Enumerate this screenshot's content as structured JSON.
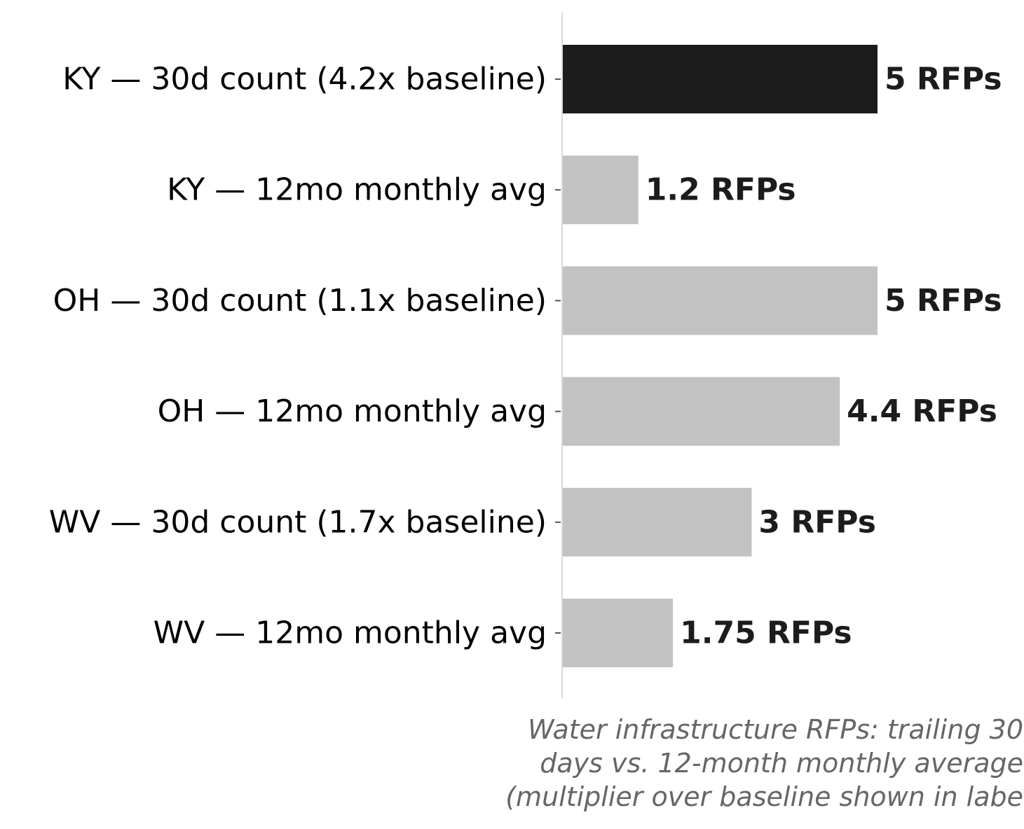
{
  "chart_data": {
    "type": "bar",
    "orientation": "horizontal",
    "categories": [
      "KY — 30d count (4.2x baseline)",
      "KY — 12mo monthly avg",
      "OH — 30d count (1.1x baseline)",
      "OH — 12mo monthly avg",
      "WV — 30d count (1.7x baseline)",
      "WV — 12mo monthly avg"
    ],
    "values": [
      5,
      1.2,
      5,
      4.4,
      3,
      1.75
    ],
    "value_labels": [
      "5 RFPs",
      "1.2 RFPs",
      "5 RFPs",
      "4.4 RFPs",
      "3 RFPs",
      "1.75 RFPs"
    ],
    "bar_colors": [
      "#1c1c1c",
      "#c2c2c2",
      "#c2c2c2",
      "#c2c2c2",
      "#c2c2c2",
      "#c2c2c2"
    ],
    "value_label_color": "#1c1c1c",
    "caption": "Water infrastructure RFPs: trailing 30\ndays vs. 12-month monthly average\n(multiplier over baseline shown in labe",
    "xlim": [
      0,
      5
    ],
    "xaxis_visible": false,
    "grid": false,
    "legend": "none"
  }
}
